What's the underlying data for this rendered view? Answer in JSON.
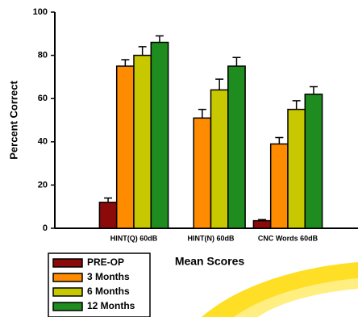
{
  "chart_data": {
    "type": "bar",
    "y_label": "Percent Correct",
    "x_label": "Mean Scores",
    "categories": [
      "HINT(Q) 60dB",
      "HINT(N) 60dB",
      "CNC Words 60dB"
    ],
    "series": [
      {
        "name": "PRE-OP",
        "color": "#8b0a0a",
        "values": [
          12,
          null,
          3.5
        ],
        "errors": [
          2,
          null,
          0.5
        ]
      },
      {
        "name": "3 Months",
        "color": "#ff8c00",
        "values": [
          75,
          51,
          39
        ],
        "errors": [
          3,
          4,
          3
        ]
      },
      {
        "name": "6 Months",
        "color": "#c8c800",
        "values": [
          80,
          64,
          55
        ],
        "errors": [
          4,
          5,
          4
        ]
      },
      {
        "name": "12 Months",
        "color": "#1e8c1e",
        "values": [
          86,
          75,
          62
        ],
        "errors": [
          3,
          4,
          3.5
        ]
      }
    ],
    "ylim": [
      0,
      100
    ],
    "yticks": [
      0,
      20,
      40,
      60,
      80,
      100
    ]
  }
}
